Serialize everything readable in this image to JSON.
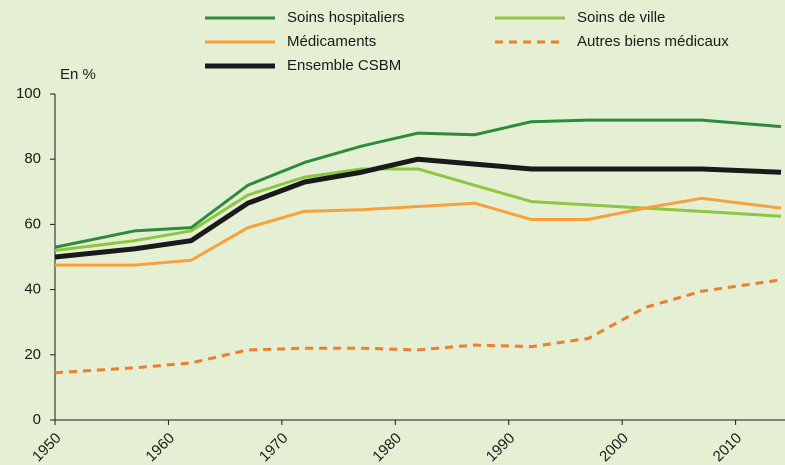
{
  "chart_data": {
    "type": "line",
    "ylabel": "En %",
    "x": [
      1950,
      1957,
      1962,
      1967,
      1972,
      1977,
      1982,
      1987,
      1992,
      1997,
      2002,
      2007,
      2014
    ],
    "series": [
      {
        "name": "Soins hospitaliers",
        "color": "#2e8b3e",
        "style": "solid",
        "values": [
          53,
          58,
          59,
          72,
          79,
          84,
          88,
          87.5,
          91.5,
          92,
          92,
          92,
          90
        ]
      },
      {
        "name": "Soins de ville",
        "color": "#8dc63f",
        "style": "solid",
        "values": [
          52,
          55,
          58,
          69,
          74.5,
          77,
          77,
          72,
          67,
          66,
          65,
          64,
          62.5
        ]
      },
      {
        "name": "Médicaments",
        "color": "#f7a13c",
        "style": "solid",
        "values": [
          47.5,
          47.5,
          49,
          59,
          64,
          64.5,
          65.5,
          66.5,
          61.5,
          61.5,
          65,
          68,
          65
        ]
      },
      {
        "name": "Autres biens médicaux",
        "color": "#ef7d2c",
        "style": "dashed",
        "values": [
          14.5,
          16,
          17.5,
          21.5,
          22,
          22,
          21.5,
          23,
          22.5,
          25,
          34.5,
          39.5,
          43
        ]
      },
      {
        "name": "Ensemble CSBM",
        "color": "#1a1a1a",
        "style": "bold",
        "values": [
          50,
          52.5,
          55,
          66.5,
          73,
          76,
          80,
          78.5,
          77,
          77,
          77,
          77,
          76
        ]
      }
    ],
    "xlim": [
      1950,
      2014
    ],
    "xticks": [
      1950,
      1960,
      1970,
      1980,
      1990,
      2000,
      2010
    ],
    "ylim": [
      0,
      100
    ],
    "yticks": [
      0,
      20,
      40,
      60,
      80,
      100
    ]
  }
}
